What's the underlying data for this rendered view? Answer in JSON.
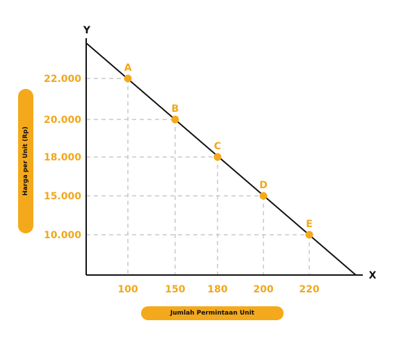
{
  "chart_data": {
    "type": "line",
    "title": "",
    "xlabel": "Jumlah Permintaan Unit",
    "ylabel": "Harga per Unit (Rp)",
    "x_axis_letter": "X",
    "y_axis_letter": "Y",
    "x_tick_labels": [
      "100",
      "150",
      "180",
      "200",
      "220"
    ],
    "y_tick_labels": [
      "22.000",
      "20.000",
      "18.000",
      "15.000",
      "10.000"
    ],
    "points": [
      {
        "label": "A",
        "x": "100",
        "y": "22.000"
      },
      {
        "label": "B",
        "x": "150",
        "y": "20.000"
      },
      {
        "label": "C",
        "x": "180",
        "y": "18.000"
      },
      {
        "label": "D",
        "x": "200",
        "y": "15.000"
      },
      {
        "label": "E",
        "x": "220",
        "y": "10.000"
      }
    ],
    "grid": "dashed guide lines from each point to both axes",
    "colors": {
      "accent": "#f4a91c",
      "line": "#111111",
      "guide": "#c8c8c8"
    }
  }
}
